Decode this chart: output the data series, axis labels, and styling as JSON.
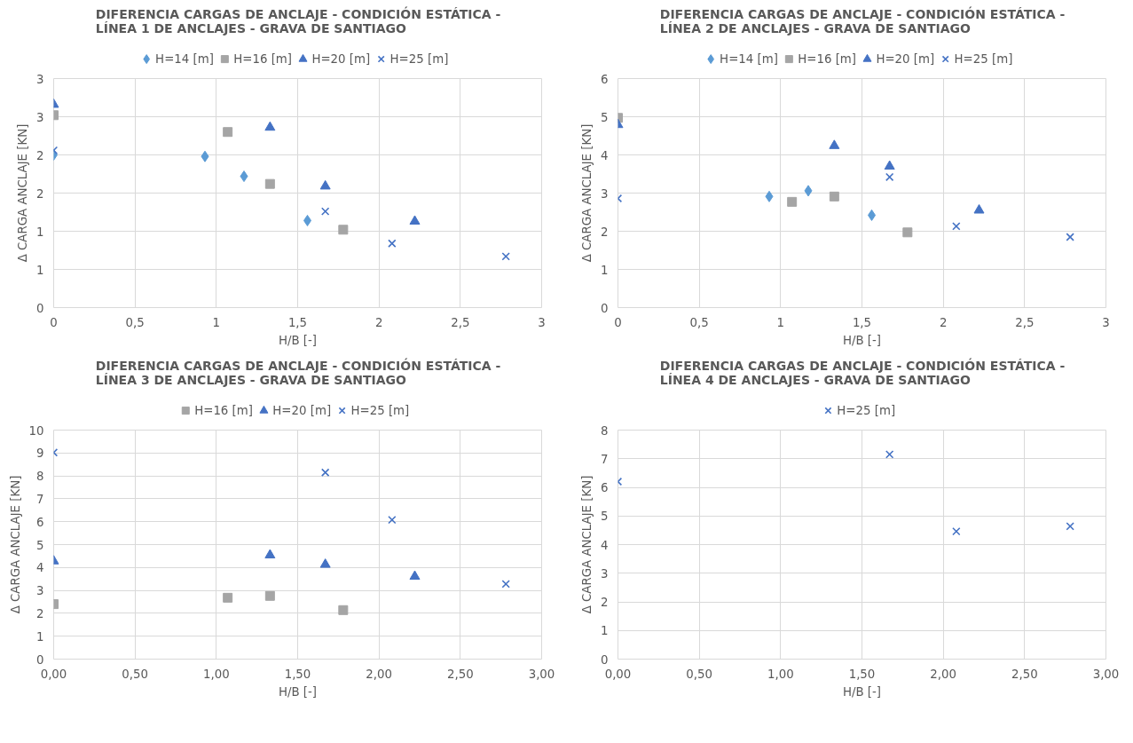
{
  "chart_data": [
    {
      "type": "scatter",
      "title": "DIFERENCIA CARGAS DE ANCLAJE - CONDICIÓN ESTÁTICA -\nLÍNEA 1 DE ANCLAJES - GRAVA DE SANTIAGO",
      "xlabel": "H/B [-]",
      "ylabel": "Δ CARGA ANCLAJE [KN]",
      "xlim": [
        0,
        3
      ],
      "ylim": [
        0,
        3
      ],
      "xticks": [
        0,
        {
          "value": 0.5,
          "label": "0,5"
        },
        1,
        {
          "value": 1.5,
          "label": "1,5"
        },
        2,
        {
          "value": 2.5,
          "label": "2,5"
        },
        3
      ],
      "yticks": [
        0,
        {
          "value": 0.5,
          "label": "1"
        },
        1,
        {
          "value": 1.5,
          "label": "2"
        },
        2,
        {
          "value": 2.5,
          "label": "3"
        },
        3
      ],
      "grid": true,
      "legend": "top",
      "series": [
        {
          "name": "H=14 [m]",
          "color": "#5b9bd5",
          "marker": "diamond",
          "x": [
            0,
            0.93,
            1.17,
            1.56
          ],
          "values": [
            2.0,
            1.98,
            1.72,
            1.14
          ]
        },
        {
          "name": "H=16 [m]",
          "color": "#a5a5a5",
          "marker": "square",
          "x": [
            0,
            1.07,
            1.33,
            1.78
          ],
          "values": [
            2.52,
            2.3,
            1.62,
            1.02
          ]
        },
        {
          "name": "H=20 [m]",
          "color": "#4472c4",
          "marker": "triangle",
          "x": [
            0,
            1.33,
            1.67,
            2.22
          ],
          "values": [
            2.66,
            2.36,
            1.59,
            1.13
          ]
        },
        {
          "name": "H=25 [m]",
          "color": "#4472c4",
          "marker": "cross",
          "x": [
            0,
            1.67,
            2.08,
            2.78
          ],
          "values": [
            2.06,
            1.26,
            0.84,
            0.67
          ]
        }
      ]
    },
    {
      "type": "scatter",
      "title": "DIFERENCIA CARGAS DE ANCLAJE - CONDICIÓN ESTÁTICA -\nLÍNEA 2 DE ANCLAJES - GRAVA DE SANTIAGO",
      "xlabel": "H/B [-]",
      "ylabel": "Δ CARGA ANCLAJE [KN]",
      "xlim": [
        0,
        3
      ],
      "ylim": [
        0,
        6
      ],
      "xticks": [
        0,
        {
          "value": 0.5,
          "label": "0,5"
        },
        1,
        {
          "value": 1.5,
          "label": "1,5"
        },
        2,
        {
          "value": 2.5,
          "label": "2,5"
        },
        3
      ],
      "yticks": [
        0,
        1,
        2,
        3,
        4,
        5,
        6
      ],
      "grid": true,
      "legend": "top",
      "series": [
        {
          "name": "H=14 [m]",
          "color": "#5b9bd5",
          "marker": "diamond",
          "x": [
            0.93,
            1.17,
            1.56
          ],
          "values": [
            2.91,
            3.06,
            2.42
          ]
        },
        {
          "name": "H=16 [m]",
          "color": "#a5a5a5",
          "marker": "square",
          "x": [
            0,
            1.07,
            1.33,
            1.78
          ],
          "values": [
            4.97,
            2.77,
            2.91,
            1.97
          ]
        },
        {
          "name": "H=20 [m]",
          "color": "#4472c4",
          "marker": "triangle",
          "x": [
            0,
            1.33,
            1.67,
            2.22
          ],
          "values": [
            4.79,
            4.24,
            3.7,
            2.55
          ]
        },
        {
          "name": "H=25 [m]",
          "color": "#4472c4",
          "marker": "cross",
          "x": [
            0,
            1.67,
            2.08,
            2.78
          ],
          "values": [
            2.86,
            3.42,
            2.13,
            1.85
          ]
        }
      ]
    },
    {
      "type": "scatter",
      "title": "DIFERENCIA CARGAS DE ANCLAJE - CONDICIÓN ESTÁTICA -\nLÍNEA 3 DE ANCLAJES - GRAVA DE SANTIAGO",
      "xlabel": "H/B [-]",
      "ylabel": "Δ CARGA ANCLAJE [KN]",
      "xlim": [
        0,
        3
      ],
      "ylim": [
        0,
        10
      ],
      "xticks": [
        {
          "value": 0,
          "label": "0,00"
        },
        {
          "value": 0.5,
          "label": "0,50"
        },
        {
          "value": 1,
          "label": "1,00"
        },
        {
          "value": 1.5,
          "label": "1,50"
        },
        {
          "value": 2,
          "label": "2,00"
        },
        {
          "value": 2.5,
          "label": "2,50"
        },
        {
          "value": 3,
          "label": "3,00"
        }
      ],
      "yticks": [
        0,
        1,
        2,
        3,
        4,
        5,
        6,
        7,
        8,
        9,
        10
      ],
      "grid": true,
      "legend": "top",
      "series": [
        {
          "name": "H=16 [m]",
          "color": "#a5a5a5",
          "marker": "square",
          "x": [
            0,
            1.07,
            1.33,
            1.78
          ],
          "values": [
            2.4,
            2.68,
            2.76,
            2.14
          ]
        },
        {
          "name": "H=20 [m]",
          "color": "#4472c4",
          "marker": "triangle",
          "x": [
            0,
            1.33,
            1.67,
            2.22
          ],
          "values": [
            4.28,
            4.54,
            4.13,
            3.61
          ]
        },
        {
          "name": "H=25 [m]",
          "color": "#4472c4",
          "marker": "cross",
          "x": [
            0,
            1.67,
            2.08,
            2.78
          ],
          "values": [
            9.02,
            8.15,
            6.08,
            3.28
          ]
        }
      ]
    },
    {
      "type": "scatter",
      "title": "DIFERENCIA CARGAS DE ANCLAJE - CONDICIÓN ESTÁTICA -\nLÍNEA 4 DE ANCLAJES - GRAVA DE SANTIAGO",
      "xlabel": "H/B [-]",
      "ylabel": "Δ CARGA ANCLAJE [KN]",
      "xlim": [
        0,
        3
      ],
      "ylim": [
        0,
        8
      ],
      "xticks": [
        {
          "value": 0,
          "label": "0,00"
        },
        {
          "value": 0.5,
          "label": "0,50"
        },
        {
          "value": 1,
          "label": "1,00"
        },
        {
          "value": 1.5,
          "label": "1,50"
        },
        {
          "value": 2,
          "label": "2,00"
        },
        {
          "value": 2.5,
          "label": "2,50"
        },
        {
          "value": 3,
          "label": "3,00"
        }
      ],
      "yticks": [
        0,
        1,
        2,
        3,
        4,
        5,
        6,
        7,
        8
      ],
      "grid": true,
      "legend": "top",
      "series": [
        {
          "name": "H=25 [m]",
          "color": "#4472c4",
          "marker": "cross",
          "x": [
            0,
            1.67,
            2.08,
            2.78
          ],
          "values": [
            6.2,
            7.15,
            4.46,
            4.64
          ]
        }
      ]
    }
  ]
}
